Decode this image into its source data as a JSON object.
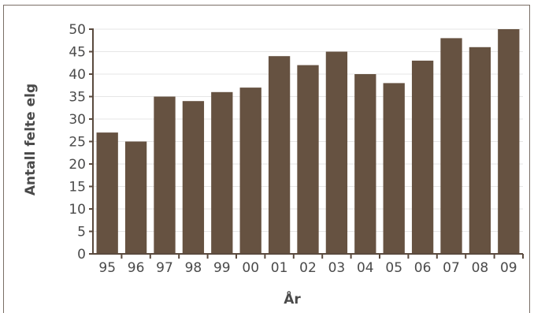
{
  "chart_data": {
    "type": "bar",
    "categories": [
      "95",
      "96",
      "97",
      "98",
      "99",
      "00",
      "01",
      "02",
      "03",
      "04",
      "05",
      "06",
      "07",
      "08",
      "09"
    ],
    "values": [
      27,
      25,
      35,
      34,
      36,
      37,
      44,
      42,
      45,
      40,
      38,
      43,
      48,
      46,
      50
    ],
    "xlabel": "År",
    "ylabel": "Antall felte elg",
    "ylim": [
      0,
      50
    ],
    "yticks": [
      0,
      5,
      10,
      15,
      20,
      25,
      30,
      35,
      40,
      45,
      50
    ],
    "grid": true,
    "colors": {
      "bar": "#665241",
      "axis": "#5a4a3e",
      "grid": "#e6e6e6",
      "text": "#4a4a4a"
    }
  }
}
